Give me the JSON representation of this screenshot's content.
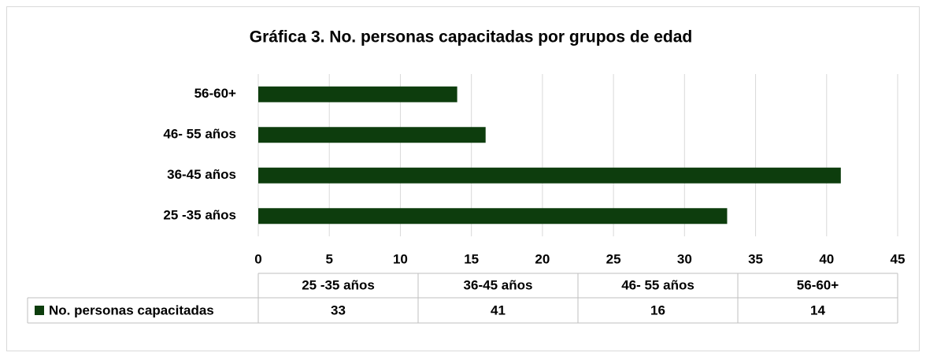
{
  "chart_data": {
    "type": "bar",
    "orientation": "horizontal",
    "title": "Gráfica 3. No. personas capacitadas por grupos de edad",
    "categories": [
      "25 -35 años",
      "36-45 años",
      "46- 55 años",
      "56-60+"
    ],
    "series": [
      {
        "name": "No. personas capacitadas",
        "color": "#0d3d0d",
        "values": [
          33,
          41,
          16,
          14
        ]
      }
    ],
    "xlim": [
      0,
      45
    ],
    "xticks": [
      0,
      5,
      10,
      15,
      20,
      25,
      30,
      35,
      40,
      45
    ],
    "grid": true,
    "data_table": true
  }
}
